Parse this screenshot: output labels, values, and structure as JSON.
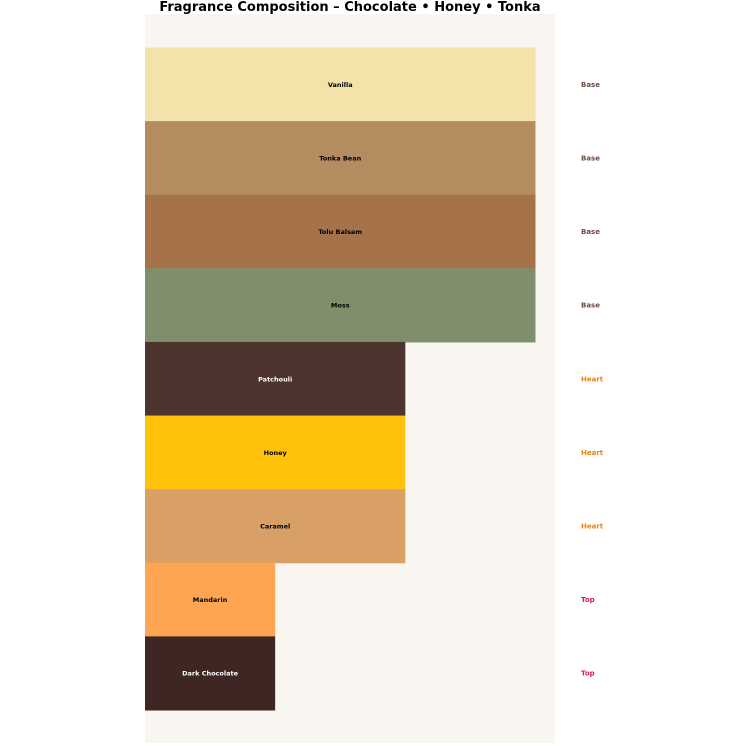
{
  "chart_data": {
    "type": "bar",
    "orientation": "horizontal",
    "title": "Fragrance Composition – Chocolate • Honey • Tonka",
    "xlabel": "",
    "ylabel": "",
    "xlim": [
      0,
      3.15
    ],
    "grid": false,
    "axes_visible": false,
    "background": "#f9f6f1",
    "categories": [
      "Vanilla",
      "Tonka Bean",
      "Tolu Balsam",
      "Moss",
      "Patchouli",
      "Honey",
      "Caramel",
      "Mandarin",
      "Dark Chocolate"
    ],
    "values": [
      3,
      3,
      3,
      3,
      2,
      2,
      2,
      1,
      1
    ],
    "colors": [
      "#f3e3ab",
      "#b58b60",
      "#a5724a",
      "#7f8f6c",
      "#4e342e",
      "#ffc10a",
      "#d8a066",
      "#ffa552",
      "#3e2723"
    ],
    "label_colors": [
      "#000000",
      "#000000",
      "#000000",
      "#000000",
      "#ffffff",
      "#000000",
      "#000000",
      "#000000",
      "#ffffff"
    ],
    "tiers": [
      "Base",
      "Base",
      "Base",
      "Base",
      "Heart",
      "Heart",
      "Heart",
      "Top",
      "Top"
    ],
    "tier_colors": {
      "Base": "#6d4c41",
      "Heart": "#f0810f",
      "Top": "#d81b60"
    }
  }
}
